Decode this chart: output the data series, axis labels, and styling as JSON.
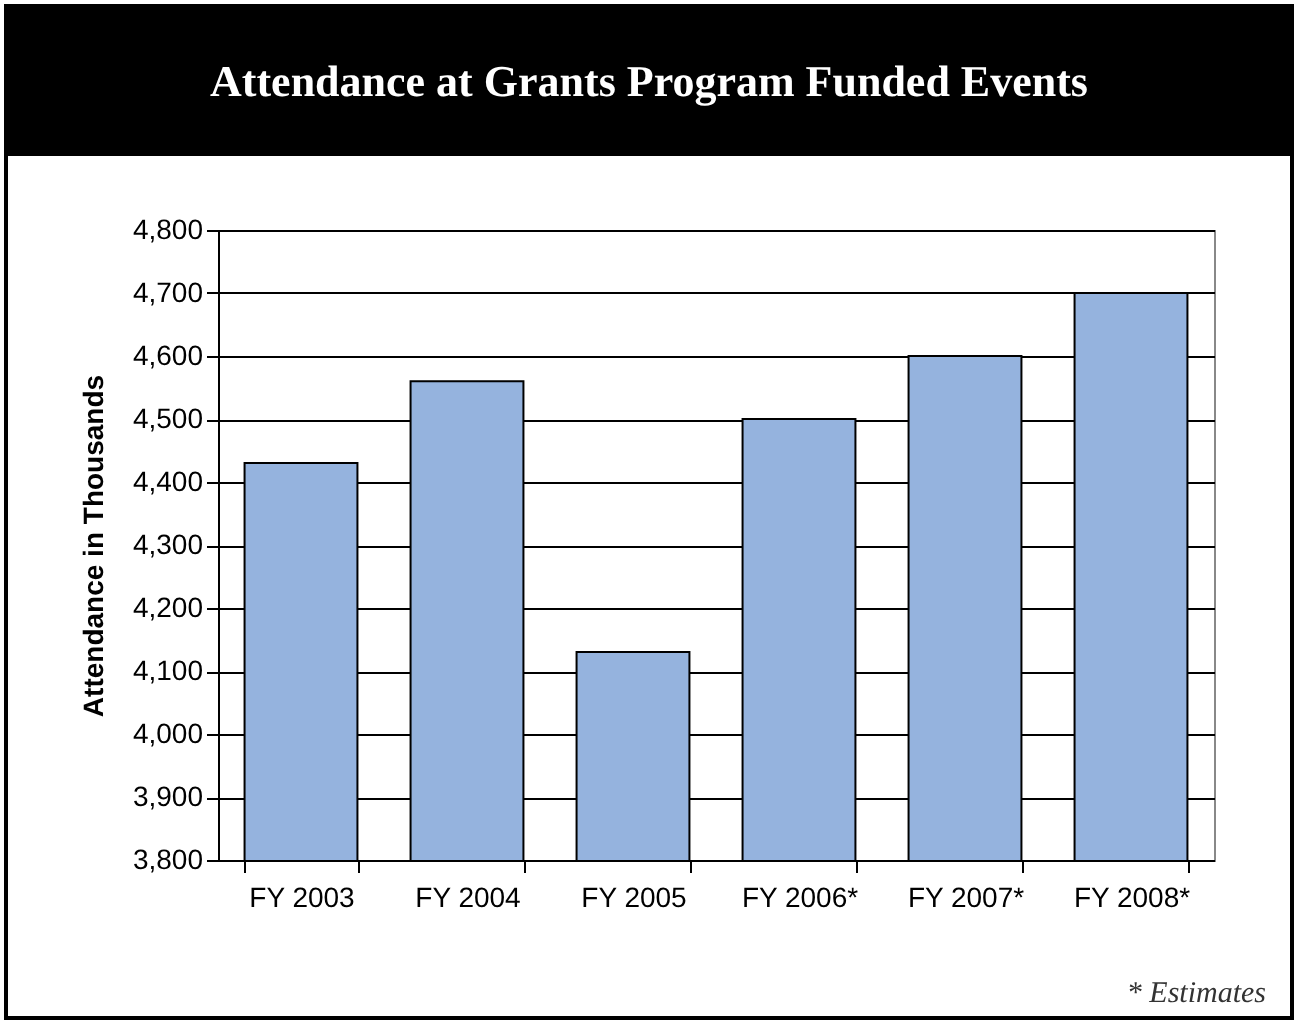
{
  "chart_data": {
    "type": "bar",
    "title": "Attendance at Grants Program Funded Events",
    "ylabel": "Attendance in Thousands",
    "categories": [
      "FY 2003",
      "FY 2004",
      "FY 2005",
      "FY 2006*",
      "FY 2007*",
      "FY 2008*"
    ],
    "values": [
      4430,
      4560,
      4130,
      4500,
      4600,
      4700
    ],
    "color": "#95b3de",
    "ylim": [
      3800,
      4800
    ],
    "yticks": [
      {
        "value": 3800,
        "label": "3,800"
      },
      {
        "value": 3900,
        "label": "3,900"
      },
      {
        "value": 4000,
        "label": "4,000"
      },
      {
        "value": 4100,
        "label": "4,100"
      },
      {
        "value": 4200,
        "label": "4,200"
      },
      {
        "value": 4300,
        "label": "4,300"
      },
      {
        "value": 4400,
        "label": "4,400"
      },
      {
        "value": 4500,
        "label": "4,500"
      },
      {
        "value": 4600,
        "label": "4,600"
      },
      {
        "value": 4700,
        "label": "4,700"
      },
      {
        "value": 4800,
        "label": "4,800"
      }
    ],
    "grid": "y",
    "annotations": [
      "* Estimates"
    ]
  }
}
